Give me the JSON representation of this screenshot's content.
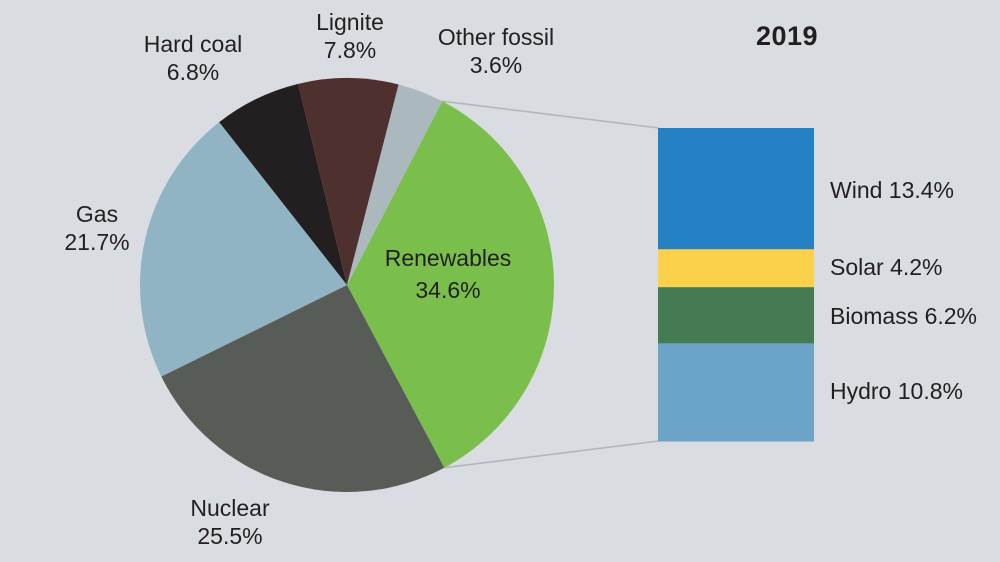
{
  "title": "2019",
  "background_color": "#d9dce0",
  "text_color": "#231f20",
  "connector_color": "#b3b7bb",
  "chart_data": {
    "type": "pie",
    "title": "2019",
    "unit": "%",
    "legend_position": "labels-around-pie",
    "start_angle_deg_from_12_clockwise": 27.4,
    "direction": "clockwise",
    "slices": [
      {
        "label": "Renewables",
        "value": 34.6,
        "pct_text": "34.6%",
        "color": "#7abf4c"
      },
      {
        "label": "Nuclear",
        "value": 25.5,
        "pct_text": "25.5%",
        "color": "#575c57"
      },
      {
        "label": "Gas",
        "value": 21.7,
        "pct_text": "21.7%",
        "color": "#90b4c4"
      },
      {
        "label": "Hard coal",
        "value": 6.8,
        "pct_text": "6.8%",
        "color": "#231f20"
      },
      {
        "label": "Lignite",
        "value": 7.8,
        "pct_text": "7.8%",
        "color": "#4e302e"
      },
      {
        "label": "Other fossil",
        "value": 3.6,
        "pct_text": "3.6%",
        "color": "#abb8bd"
      }
    ],
    "breakdown": {
      "of_slice": "Renewables",
      "total_value": 34.6,
      "type": "stacked-bar",
      "segments": [
        {
          "label": "Wind",
          "value": 13.4,
          "text": "Wind 13.4%",
          "color": "#2581c4"
        },
        {
          "label": "Solar",
          "value": 4.2,
          "text": "Solar 4.2%",
          "color": "#fbd14b"
        },
        {
          "label": "Biomass",
          "value": 6.2,
          "text": "Biomass 6.2%",
          "color": "#457b53"
        },
        {
          "label": "Hydro",
          "value": 10.8,
          "text": "Hydro 10.8%",
          "color": "#6ba4c7"
        }
      ]
    }
  }
}
